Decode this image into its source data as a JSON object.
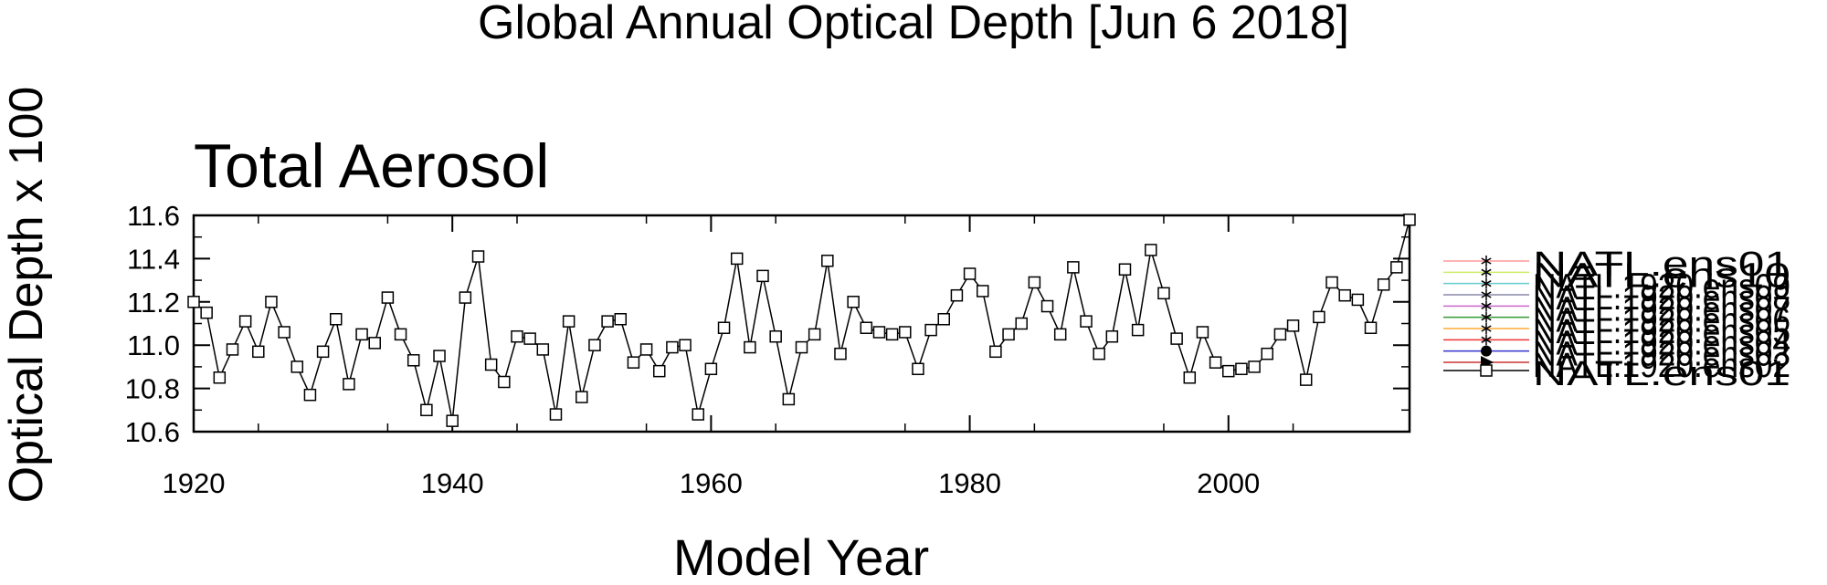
{
  "chart_data": {
    "type": "line",
    "title": "Global Annual Optical Depth [Jun  6 2018]",
    "subtitle": "Total Aerosol",
    "xlabel": "Model Year",
    "ylabel": "Optical Depth x 100",
    "xlim": [
      1920,
      2014
    ],
    "ylim": [
      10.6,
      11.6
    ],
    "x_ticks": [
      1920,
      1940,
      1960,
      1980,
      2000
    ],
    "x_tick_labels": [
      "1920",
      "1940",
      "1960",
      "1980",
      "2000"
    ],
    "y_ticks": [
      10.6,
      10.8,
      11.0,
      11.2,
      11.4,
      11.6
    ],
    "y_tick_labels": [
      "10.6",
      "10.8",
      "11.0",
      "11.2",
      "11.4",
      "11.6"
    ],
    "grid": false,
    "legend_position": "right",
    "x": [
      1920,
      1921,
      1922,
      1923,
      1924,
      1925,
      1926,
      1927,
      1928,
      1929,
      1930,
      1931,
      1932,
      1933,
      1934,
      1935,
      1936,
      1937,
      1938,
      1939,
      1940,
      1941,
      1942,
      1943,
      1944,
      1945,
      1946,
      1947,
      1948,
      1949,
      1950,
      1951,
      1952,
      1953,
      1954,
      1955,
      1956,
      1957,
      1958,
      1959,
      1960,
      1961,
      1962,
      1963,
      1964,
      1965,
      1966,
      1967,
      1968,
      1969,
      1970,
      1971,
      1972,
      1973,
      1974,
      1975,
      1976,
      1977,
      1978,
      1979,
      1980,
      1981,
      1982,
      1983,
      1984,
      1985,
      1986,
      1987,
      1988,
      1989,
      1990,
      1991,
      1992,
      1993,
      1994,
      1995,
      1996,
      1997,
      1998,
      1999,
      2000,
      2001,
      2002,
      2003,
      2004,
      2005,
      2006,
      2007,
      2008,
      2009,
      2010,
      2011,
      2012,
      2013,
      2014
    ],
    "series": [
      {
        "name": "NATL.ens01",
        "color": "#000000",
        "marker": "square",
        "values": [
          11.2,
          11.15,
          10.85,
          10.98,
          11.11,
          10.97,
          11.2,
          11.06,
          10.9,
          10.77,
          10.97,
          11.12,
          10.82,
          11.05,
          11.01,
          11.22,
          11.05,
          10.93,
          10.7,
          10.95,
          10.65,
          11.22,
          11.41,
          10.91,
          10.83,
          11.04,
          11.03,
          10.98,
          10.68,
          11.11,
          10.76,
          11.0,
          11.11,
          11.12,
          10.92,
          10.98,
          10.88,
          10.99,
          11.0,
          10.68,
          10.89,
          11.08,
          11.4,
          10.99,
          11.32,
          11.04,
          10.75,
          10.99,
          11.05,
          11.39,
          10.96,
          11.2,
          11.08,
          11.06,
          11.05,
          11.06,
          10.89,
          11.07,
          11.12,
          11.23,
          11.33,
          11.25,
          10.97,
          11.05,
          11.1,
          11.29,
          11.18,
          11.05,
          11.36,
          11.11,
          10.96,
          11.04,
          11.35,
          11.07,
          11.44,
          11.24,
          11.03,
          10.85,
          11.06,
          10.92,
          10.88,
          10.89,
          10.9,
          10.96,
          11.05,
          11.09,
          10.84,
          11.13,
          11.29,
          11.23,
          11.21,
          11.08,
          11.28,
          11.36,
          11.58
        ]
      }
    ],
    "legend": [
      {
        "label": "NATL.ens01",
        "color": "#ff9999",
        "marker": "asterisk"
      },
      {
        "label": "NATL.ens10",
        "color": "#ccee66",
        "marker": "asterisk"
      },
      {
        "label": "NATL.1920.ens09",
        "color": "#66cccc",
        "marker": "asterisk"
      },
      {
        "label": "NATL.1920.ens08",
        "color": "#8888aa",
        "marker": "asterisk"
      },
      {
        "label": "NATL.1920.ens07",
        "color": "#cc66cc",
        "marker": "asterisk"
      },
      {
        "label": "NATL.1920.ens06",
        "color": "#339933",
        "marker": "asterisk"
      },
      {
        "label": "NATL.1920.ens05",
        "color": "#ffaa33",
        "marker": "asterisk"
      },
      {
        "label": "NATL.1920.ens04",
        "color": "#ee3333",
        "marker": "asterisk"
      },
      {
        "label": "NATL.1920.ens03",
        "color": "#3333cc",
        "marker": "dot"
      },
      {
        "label": "NATL.1920.ens02",
        "color": "#cc3333",
        "marker": "triangle"
      },
      {
        "label": "NATL.ens01",
        "color": "#000000",
        "marker": "square"
      }
    ]
  }
}
